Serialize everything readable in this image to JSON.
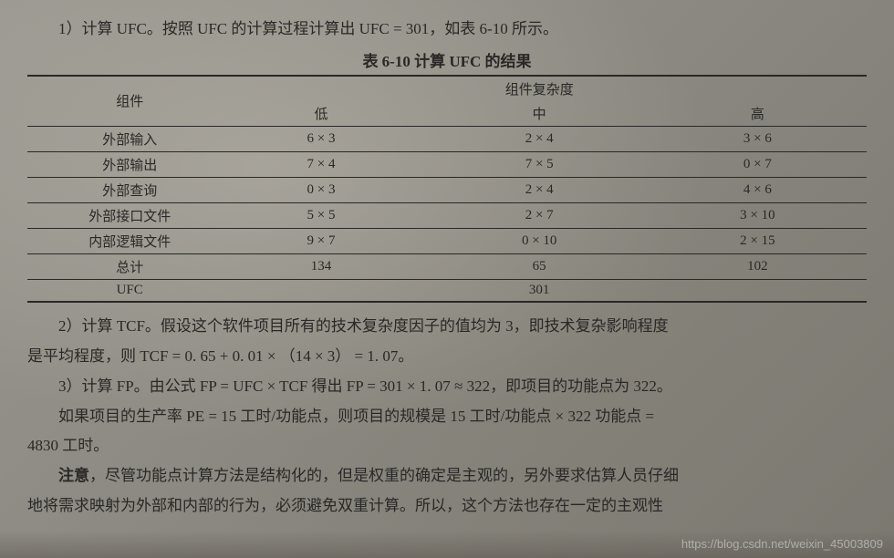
{
  "intro": "1）计算 UFC。按照 UFC 的计算过程计算出 UFC = 301，如表 6-10 所示。",
  "table_title": "表 6-10  计算 UFC 的结果",
  "table": {
    "header_group": "组件复杂度",
    "col_component": "组件",
    "col_low": "低",
    "col_mid": "中",
    "col_high": "高",
    "rows": [
      {
        "name": "外部输入",
        "low": "6 × 3",
        "mid": "2 × 4",
        "high": "3 × 6"
      },
      {
        "name": "外部输出",
        "low": "7 × 4",
        "mid": "7 × 5",
        "high": "0 × 7"
      },
      {
        "name": "外部查询",
        "low": "0 × 3",
        "mid": "2 × 4",
        "high": "4 × 6"
      },
      {
        "name": "外部接口文件",
        "low": "5 × 5",
        "mid": "2 × 7",
        "high": "3 × 10"
      },
      {
        "name": "内部逻辑文件",
        "low": "9 × 7",
        "mid": "0 × 10",
        "high": "2 × 15"
      }
    ],
    "total_label": "总计",
    "total_low": "134",
    "total_mid": "65",
    "total_high": "102",
    "ufc_label": "UFC",
    "ufc_value": "301"
  },
  "para2a": "2）计算 TCF。假设这个软件项目所有的技术复杂度因子的值均为 3，即技术复杂影响程度",
  "para2b": "是平均程度，则 TCF = 0. 65 + 0. 01 × （14 × 3） = 1. 07。",
  "para3": "3）计算 FP。由公式 FP = UFC × TCF 得出 FP = 301 × 1. 07 ≈ 322，即项目的功能点为 322。",
  "para4a": "如果项目的生产率 PE = 15 工时/功能点，则项目的规模是 15 工时/功能点 × 322 功能点 =",
  "para4b": "4830 工时。",
  "note_label": "注意",
  "note_a": "，尽管功能点计算方法是结构化的，但是权重的确定是主观的，另外要求估算人员仔细",
  "note_b": "地将需求映射为外部和内部的行为，必须避免双重计算。所以，这个方法也存在一定的主观性",
  "watermark": "https://blog.csdn.net/weixin_45003809"
}
